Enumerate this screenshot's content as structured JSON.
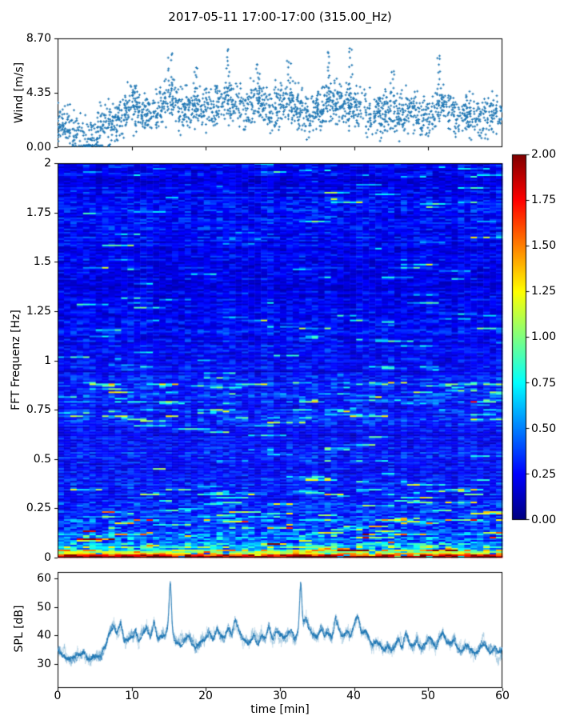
{
  "figure": {
    "title": "2017-05-11 17:00-17:00 (315.00_Hz)",
    "background": "#ffffff",
    "series_blue": "#1f77b4",
    "colormap": "jet"
  },
  "labels": {
    "wind_ylabel": "Wind [m/s]",
    "spec_ylabel": "FFT Frequenz [Hz]",
    "spl_ylabel": "SPL [dB]",
    "xlabel": "time [min]"
  },
  "ticks": {
    "wind_y": [
      "8.70",
      "4.35",
      "0.00"
    ],
    "spec_y": [
      "2",
      "1.75",
      "1.5",
      "1.25",
      "1",
      "0.75",
      "0.5",
      "0.25",
      "0"
    ],
    "cbar": [
      "2.00",
      "1.75",
      "1.50",
      "1.25",
      "1.00",
      "0.75",
      "0.50",
      "0.25",
      "0.00"
    ],
    "spl_y": [
      "60",
      "50",
      "40",
      "30"
    ],
    "spl_x": [
      "0",
      "10",
      "20",
      "30",
      "40",
      "50",
      "60"
    ]
  },
  "chart_data": [
    {
      "id": "wind",
      "type": "scatter",
      "ylabel": "Wind [m/s]",
      "xlim": [
        0,
        60
      ],
      "ylim": [
        0,
        8.7
      ],
      "ytick_values": [
        8.7,
        4.35,
        0
      ],
      "xtick_values_unlabeled": [
        10,
        20,
        30,
        40,
        50
      ],
      "marker": "plus",
      "color": "#1f77b4",
      "seed": 7,
      "n_points": 2000,
      "noise_amp": 0.85,
      "mean_per_min": [
        1.8,
        1.9,
        1.5,
        0.9,
        0.8,
        1.1,
        1.5,
        1.8,
        2.2,
        2.8,
        3.2,
        2.9,
        2.4,
        2.7,
        3.3,
        3.8,
        3.2,
        2.8,
        3.0,
        3.3,
        3.0,
        3.2,
        3.6,
        3.9,
        3.4,
        3.0,
        3.3,
        3.7,
        3.3,
        3.0,
        3.4,
        3.7,
        3.3,
        3.0,
        2.6,
        2.8,
        3.2,
        3.9,
        3.4,
        3.1,
        3.5,
        3.0,
        2.6,
        2.4,
        2.7,
        2.9,
        2.6,
        2.8,
        3.1,
        2.7,
        2.5,
        3.0,
        3.3,
        2.9,
        2.6,
        2.8,
        2.5,
        2.3,
        2.6,
        2.9,
        2.7
      ],
      "gust_peaks": [
        [
          10.5,
          4.9
        ],
        [
          15.2,
          7.5
        ],
        [
          18.6,
          6.3
        ],
        [
          23.0,
          7.7
        ],
        [
          27.0,
          6.6
        ],
        [
          31.2,
          6.9
        ],
        [
          36.5,
          7.6
        ],
        [
          39.6,
          7.9
        ],
        [
          45.2,
          6.0
        ],
        [
          51.5,
          7.3
        ]
      ],
      "low_outliers": [
        [
          43.5,
          0.5
        ],
        [
          48.0,
          1.1
        ],
        [
          57.0,
          0.9
        ]
      ]
    },
    {
      "id": "spectrogram",
      "type": "heatmap",
      "ylabel": "FFT Frequenz [Hz]",
      "xlim": [
        0,
        60
      ],
      "ylim": [
        0,
        2
      ],
      "clim": [
        0,
        2
      ],
      "colormap": "jet",
      "ytick_values": [
        2,
        1.75,
        1.5,
        1.25,
        1,
        0.75,
        0.5,
        0.25,
        0
      ],
      "colorbar_tick_values": [
        2,
        1.75,
        1.5,
        1.25,
        1,
        0.75,
        0.5,
        0.25,
        0
      ],
      "cols": 70,
      "rows": 247,
      "seed": 11,
      "freq_base": [
        [
          0,
          2.0
        ],
        [
          0.009,
          2.0
        ],
        [
          0.013,
          1.7
        ],
        [
          0.02,
          1.3
        ],
        [
          0.03,
          1.0
        ],
        [
          0.042,
          0.8
        ],
        [
          0.055,
          0.62
        ],
        [
          0.075,
          0.5
        ],
        [
          0.1,
          0.42
        ],
        [
          0.15,
          0.36
        ],
        [
          0.25,
          0.3
        ],
        [
          0.4,
          0.26
        ],
        [
          0.6,
          0.24
        ],
        [
          0.72,
          0.27
        ],
        [
          0.82,
          0.29
        ],
        [
          0.9,
          0.25
        ],
        [
          1.1,
          0.23
        ],
        [
          1.4,
          0.22
        ],
        [
          1.7,
          0.24
        ],
        [
          2,
          0.22
        ]
      ],
      "streak_prob": {
        "default": 0.012,
        "low_freq": 0.04,
        "band_0p7_0p9": 0.055
      }
    },
    {
      "id": "spl",
      "type": "line",
      "ylabel": "SPL [dB]",
      "xlabel": "time [min]",
      "xlim": [
        0,
        60
      ],
      "ylim": [
        21.6,
        62.2
      ],
      "ytick_values": [
        60,
        50,
        40,
        30
      ],
      "xtick_values": [
        0,
        10,
        20,
        30,
        40,
        50,
        60
      ],
      "color": "#1f77b4",
      "seed": 3,
      "profile_dt_min": 0.5,
      "profile_db": [
        35,
        33,
        32.5,
        32,
        32,
        32.5,
        33,
        34.5,
        32,
        31.5,
        33,
        32.5,
        33.5,
        37,
        41,
        43.5,
        40,
        44.5,
        38,
        38.5,
        39.5,
        42,
        38,
        41,
        43,
        39,
        44,
        38.5,
        40,
        40,
        44,
        40,
        38,
        37,
        37.5,
        40,
        38,
        36,
        37,
        38,
        39,
        41.5,
        39,
        42,
        40,
        39,
        42.5,
        40,
        45,
        41,
        39,
        38,
        38,
        41,
        37,
        40.5,
        39,
        43,
        38,
        42,
        40,
        38.5,
        40,
        42,
        39,
        41.5,
        44,
        46,
        42,
        40,
        39,
        42,
        40,
        41,
        39,
        46,
        41,
        39,
        41,
        40,
        44,
        47,
        41,
        42,
        39,
        36.5,
        38,
        36,
        35,
        36,
        34.5,
        36,
        38,
        36,
        41,
        37,
        36,
        38,
        35,
        37,
        39,
        38.5,
        36,
        39,
        41,
        38,
        37,
        39,
        36,
        35,
        37,
        36,
        34,
        33.5,
        36,
        37,
        35,
        34,
        36,
        33.5,
        35
      ],
      "spikes": [
        [
          15.2,
          58
        ],
        [
          32.8,
          58
        ]
      ]
    }
  ]
}
